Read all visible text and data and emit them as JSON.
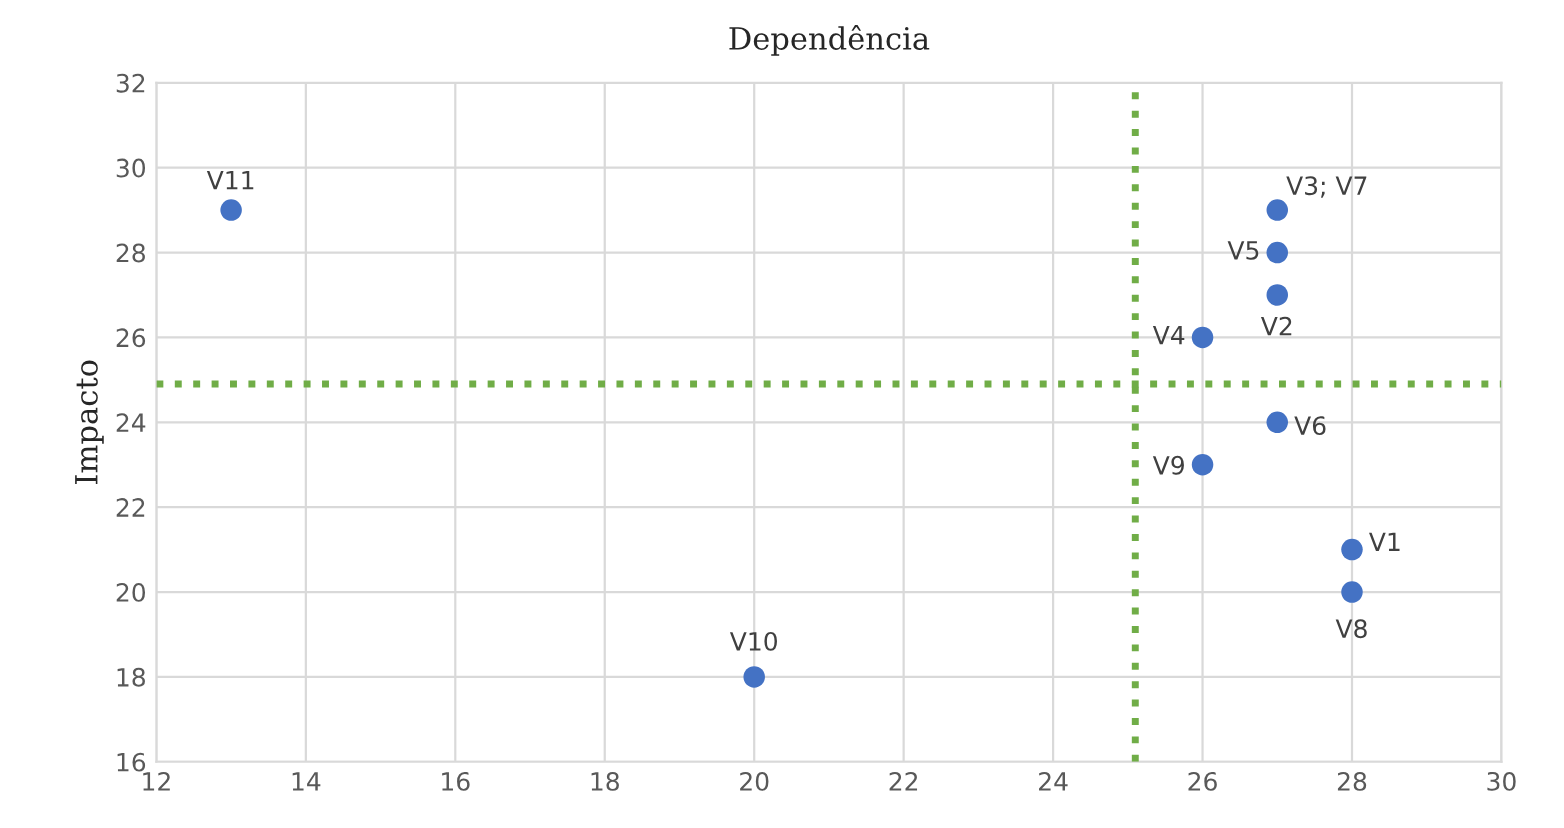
{
  "chart_data": {
    "type": "scatter",
    "title": "Dependência",
    "ylabel": "Impacto",
    "x": [
      13,
      27,
      27,
      27,
      26,
      27,
      26,
      28,
      28,
      20
    ],
    "series": [
      {
        "color": "#4472c4",
        "values": [
          29,
          29,
          28,
          27,
          26,
          24,
          23,
          21,
          20,
          18
        ]
      }
    ],
    "xlim": [
      12,
      30
    ],
    "ylim": [
      16,
      32
    ],
    "xticks": [
      12,
      14,
      16,
      18,
      20,
      22,
      24,
      26,
      28,
      30
    ],
    "yticks": [
      16,
      18,
      20,
      22,
      24,
      26,
      28,
      30,
      32
    ],
    "grid": true,
    "marker": "circle",
    "ref_lines": [
      {
        "axis": "x",
        "value": 25.1,
        "color": "#70ad47",
        "line_style": "dotted"
      },
      {
        "axis": "y",
        "value": 24.9,
        "color": "#70ad47",
        "line_style": "dotted"
      }
    ],
    "annotations": [
      {
        "text": "V11",
        "x": 13,
        "y": 29
      },
      {
        "text": "V3; V7",
        "x": 27,
        "y": 29
      },
      {
        "text": "V5",
        "x": 27,
        "y": 28
      },
      {
        "text": "V2",
        "x": 27,
        "y": 27
      },
      {
        "text": "V4",
        "x": 26,
        "y": 26
      },
      {
        "text": "V6",
        "x": 27,
        "y": 24
      },
      {
        "text": "V9",
        "x": 26,
        "y": 23
      },
      {
        "text": "V1",
        "x": 28,
        "y": 21
      },
      {
        "text": "V8",
        "x": 28,
        "y": 20
      },
      {
        "text": "V10",
        "x": 20,
        "y": 18
      }
    ]
  }
}
